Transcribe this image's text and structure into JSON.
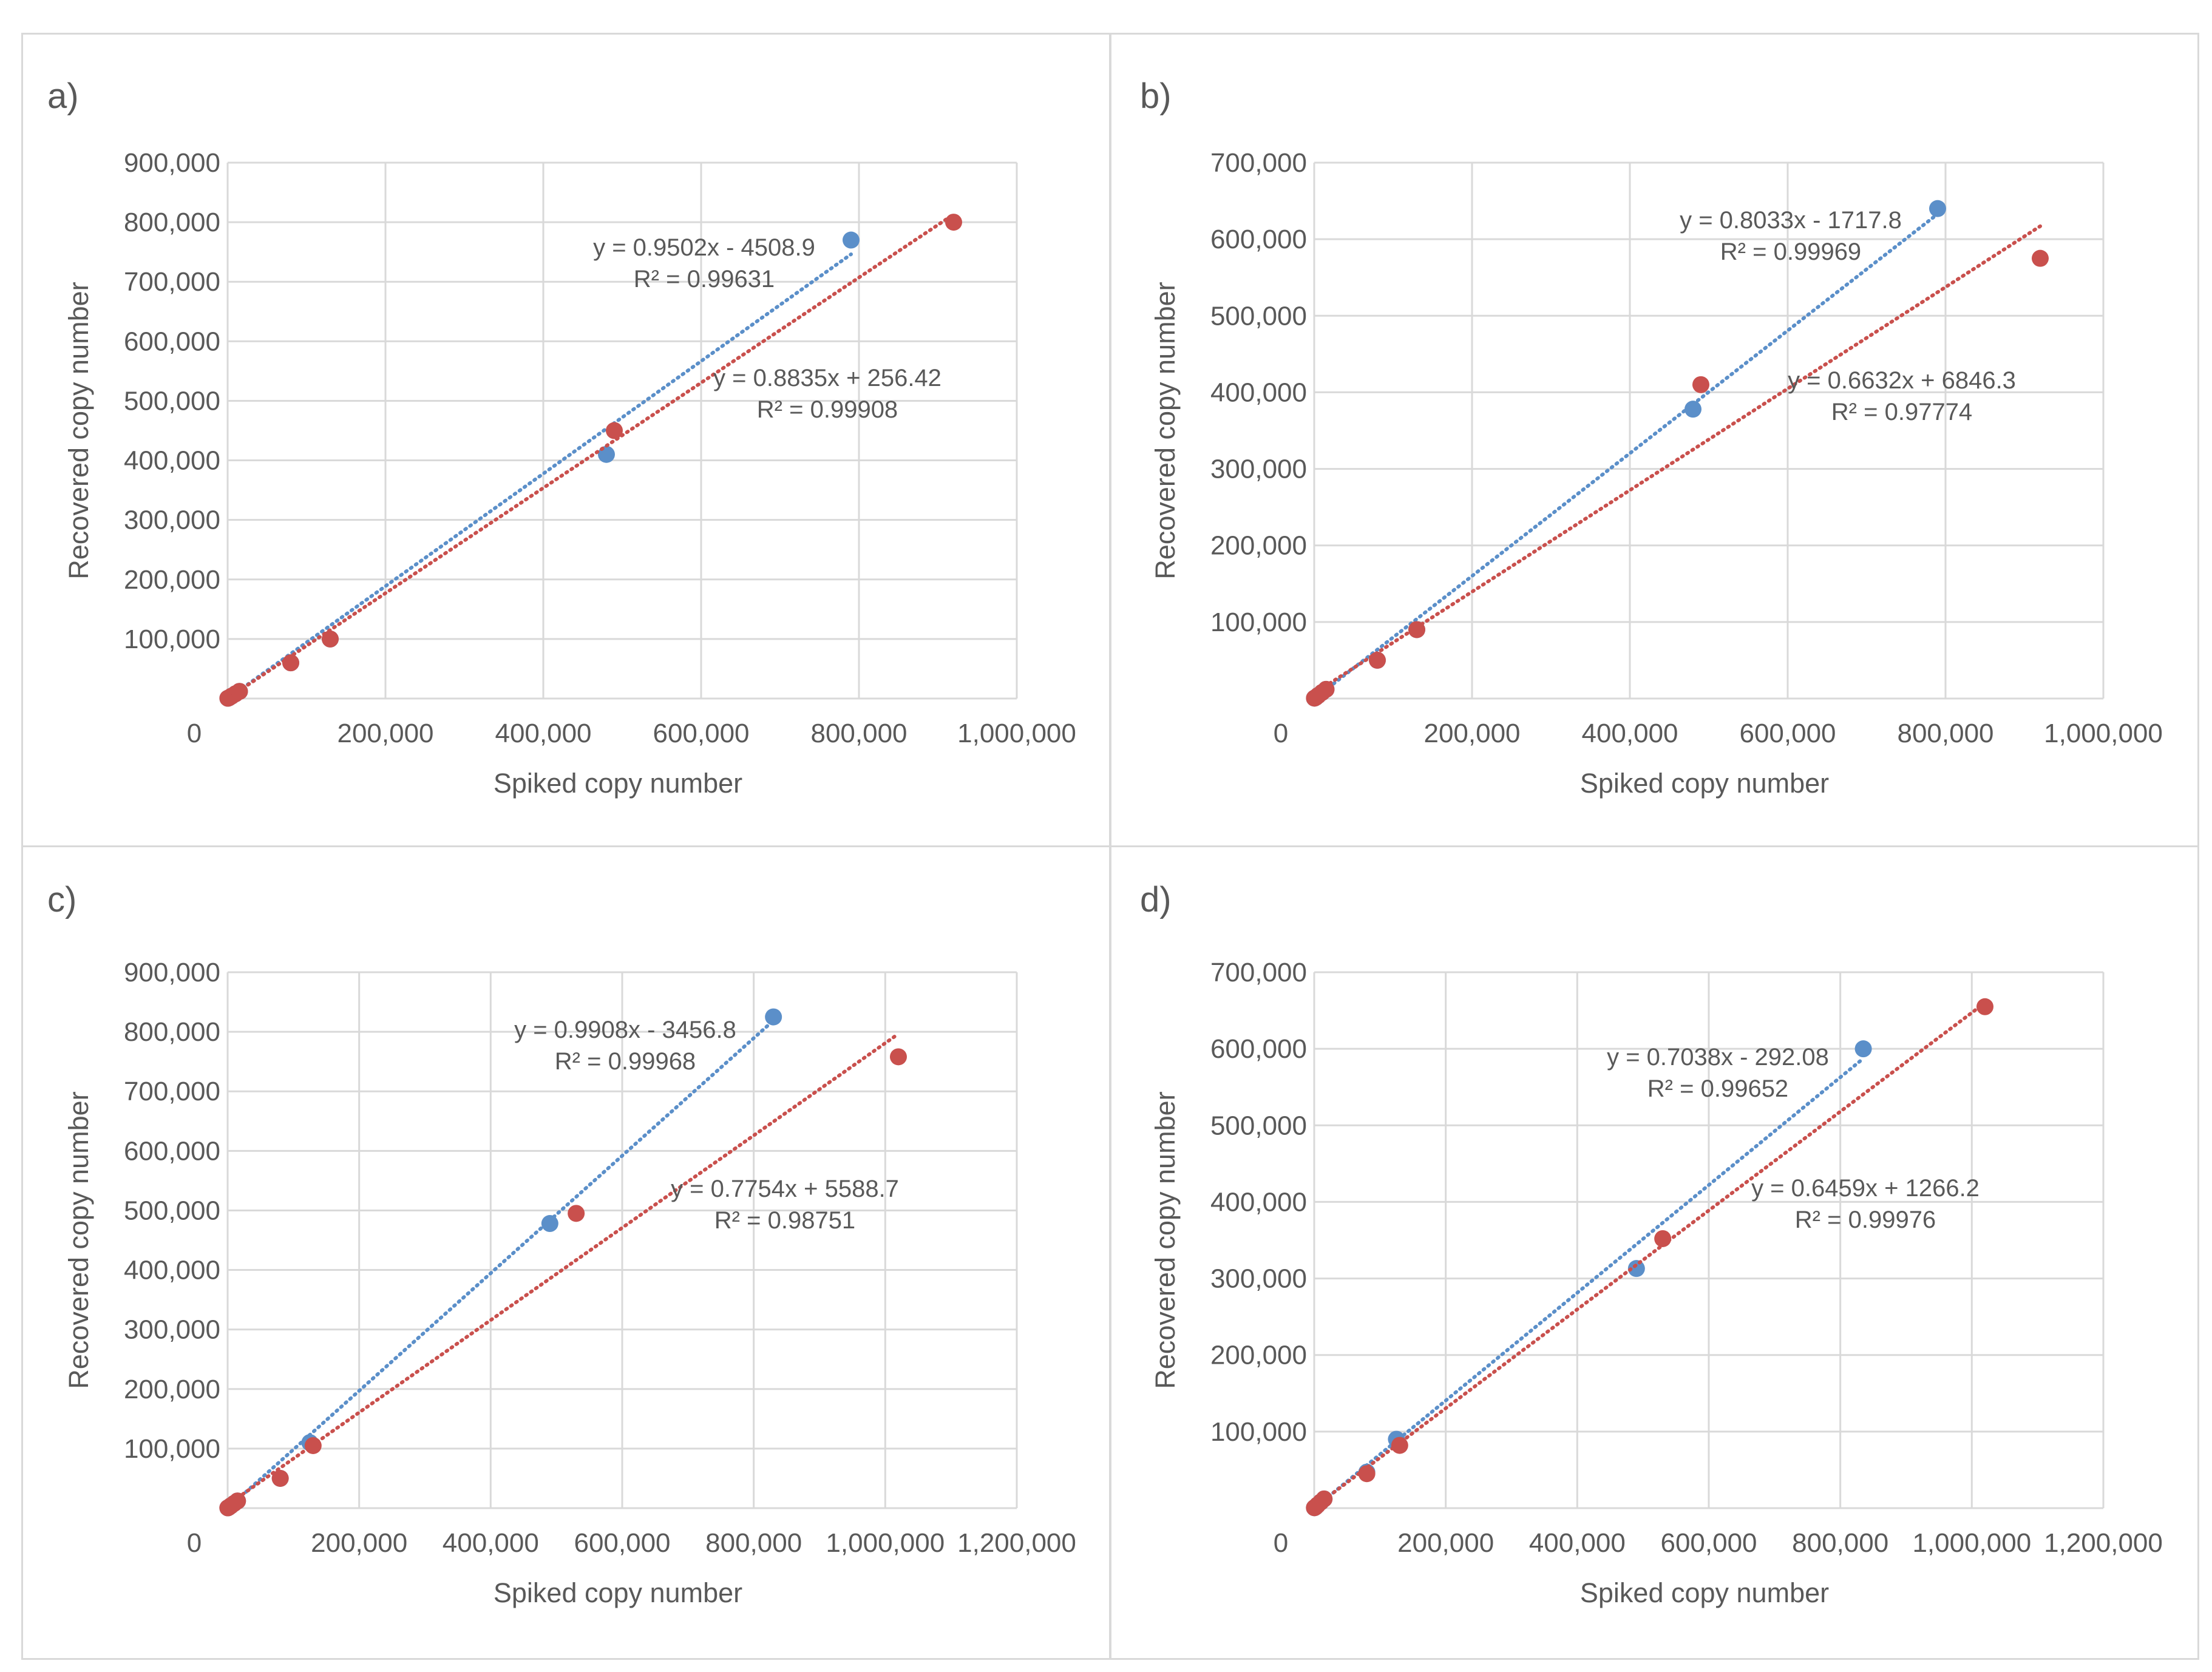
{
  "colors": {
    "series_a": "#5b8fc9",
    "series_b": "#c9504d",
    "grid": "#d9d9d9",
    "text": "#595959"
  },
  "chart_data": [
    {
      "type": "scatter",
      "panel_label": "a)",
      "xlabel": "Spiked copy number",
      "ylabel": "Recovered copy number",
      "xlim": [
        0,
        1000000
      ],
      "ylim": [
        0,
        900000
      ],
      "xticks": [
        "0",
        "200,000",
        "400,000",
        "600,000",
        "800,000",
        "1,000,000"
      ],
      "yticks": [
        "100,000",
        "200,000",
        "300,000",
        "400,000",
        "500,000",
        "600,000",
        "700,000",
        "800,000",
        "900,000"
      ],
      "series": [
        {
          "name": "blue",
          "color": "#5b8fc9",
          "x": [
            300,
            2000,
            5000,
            10000,
            15000,
            80000,
            130000,
            480000,
            790000
          ],
          "y": [
            500,
            1500,
            4000,
            8000,
            12000,
            60000,
            100000,
            410000,
            770000
          ],
          "trendline": {
            "equation": "y = 0.9502x - 4508.9",
            "r2": "R² = 0.99631",
            "slope": 0.9502,
            "intercept": -4508.9,
            "x_range": [
              300,
              790000
            ]
          }
        },
        {
          "name": "red",
          "color": "#c9504d",
          "x": [
            300,
            2000,
            5000,
            10000,
            15000,
            80000,
            130000,
            490000,
            920000
          ],
          "y": [
            500,
            1500,
            4000,
            8000,
            12000,
            60000,
            100000,
            450000,
            800000
          ],
          "trendline": {
            "equation": "y = 0.8835x + 256.42",
            "r2": "R² = 0.99908",
            "slope": 0.8835,
            "intercept": 256.42,
            "x_range": [
              300,
              920000
            ]
          }
        }
      ]
    },
    {
      "type": "scatter",
      "panel_label": "b)",
      "xlabel": "Spiked copy number",
      "ylabel": "Recovered copy number",
      "xlim": [
        0,
        1000000
      ],
      "ylim": [
        0,
        700000
      ],
      "xticks": [
        "0",
        "200,000",
        "400,000",
        "600,000",
        "800,000",
        "1,000,000"
      ],
      "yticks": [
        "100,000",
        "200,000",
        "300,000",
        "400,000",
        "500,000",
        "600,000",
        "700,000"
      ],
      "series": [
        {
          "name": "blue",
          "color": "#5b8fc9",
          "x": [
            300,
            2000,
            5000,
            10000,
            15000,
            80000,
            130000,
            480000,
            790000
          ],
          "y": [
            500,
            1500,
            4000,
            8000,
            12000,
            50000,
            90000,
            378000,
            640000
          ],
          "trendline": {
            "equation": "y = 0.8033x - 1717.8",
            "r2": "R² = 0.99969",
            "slope": 0.8033,
            "intercept": -1717.8,
            "x_range": [
              300,
              790000
            ]
          }
        },
        {
          "name": "red",
          "color": "#c9504d",
          "x": [
            300,
            2000,
            5000,
            10000,
            15000,
            80000,
            130000,
            490000,
            920000
          ],
          "y": [
            500,
            1500,
            4000,
            8000,
            12000,
            50000,
            90000,
            410000,
            575000
          ],
          "trendline": {
            "equation": "y = 0.6632x + 6846.3",
            "r2": "R² = 0.97774",
            "slope": 0.6632,
            "intercept": 6846.3,
            "x_range": [
              300,
              920000
            ]
          }
        }
      ]
    },
    {
      "type": "scatter",
      "panel_label": "c)",
      "xlabel": "Spiked copy number",
      "ylabel": "Recovered copy number",
      "xlim": [
        0,
        1200000
      ],
      "ylim": [
        0,
        900000
      ],
      "xticks": [
        "0",
        "200,000",
        "400,000",
        "600,000",
        "800,000",
        "1,000,000",
        "1,200,000"
      ],
      "yticks": [
        "100,000",
        "200,000",
        "300,000",
        "400,000",
        "500,000",
        "600,000",
        "700,000",
        "800,000",
        "900,000"
      ],
      "series": [
        {
          "name": "blue",
          "color": "#5b8fc9",
          "x": [
            300,
            2000,
            5000,
            10000,
            15000,
            80000,
            125000,
            490000,
            830000
          ],
          "y": [
            500,
            1500,
            4000,
            8000,
            12000,
            50000,
            110000,
            478000,
            825000
          ],
          "trendline": {
            "equation": "y = 0.9908x - 3456.8",
            "r2": "R² = 0.99968",
            "slope": 0.9908,
            "intercept": -3456.8,
            "x_range": [
              300,
              830000
            ]
          }
        },
        {
          "name": "red",
          "color": "#c9504d",
          "x": [
            300,
            2000,
            5000,
            10000,
            15000,
            80000,
            130000,
            530000,
            1020000
          ],
          "y": [
            500,
            1500,
            4000,
            8000,
            12000,
            50000,
            105000,
            495000,
            758000
          ],
          "trendline": {
            "equation": "y = 0.7754x + 5588.7",
            "r2": "R² = 0.98751",
            "slope": 0.7754,
            "intercept": 5588.7,
            "x_range": [
              300,
              1020000
            ]
          }
        }
      ]
    },
    {
      "type": "scatter",
      "panel_label": "d)",
      "xlabel": "Spiked copy number",
      "ylabel": "Recovered copy number",
      "xlim": [
        0,
        1200000
      ],
      "ylim": [
        0,
        700000
      ],
      "xticks": [
        "0",
        "200,000",
        "400,000",
        "600,000",
        "800,000",
        "1,000,000",
        "1,200,000"
      ],
      "yticks": [
        "100,000",
        "200,000",
        "300,000",
        "400,000",
        "500,000",
        "600,000",
        "700,000"
      ],
      "series": [
        {
          "name": "blue",
          "color": "#5b8fc9",
          "x": [
            300,
            2000,
            5000,
            10000,
            15000,
            80000,
            125000,
            490000,
            835000
          ],
          "y": [
            500,
            1500,
            4000,
            8000,
            12000,
            47000,
            90000,
            313000,
            600000
          ],
          "trendline": {
            "equation": "y = 0.7038x - 292.08",
            "r2": "R² = 0.99652",
            "slope": 0.7038,
            "intercept": -292.08,
            "x_range": [
              300,
              835000
            ]
          }
        },
        {
          "name": "red",
          "color": "#c9504d",
          "x": [
            300,
            2000,
            5000,
            10000,
            15000,
            80000,
            130000,
            530000,
            1020000
          ],
          "y": [
            500,
            1500,
            4000,
            8000,
            12000,
            45000,
            82000,
            352000,
            655000
          ],
          "trendline": {
            "equation": "y = 0.6459x + 1266.2",
            "r2": "R² = 0.99976",
            "slope": 0.6459,
            "intercept": 1266.2,
            "x_range": [
              300,
              1020000
            ]
          }
        }
      ]
    }
  ]
}
